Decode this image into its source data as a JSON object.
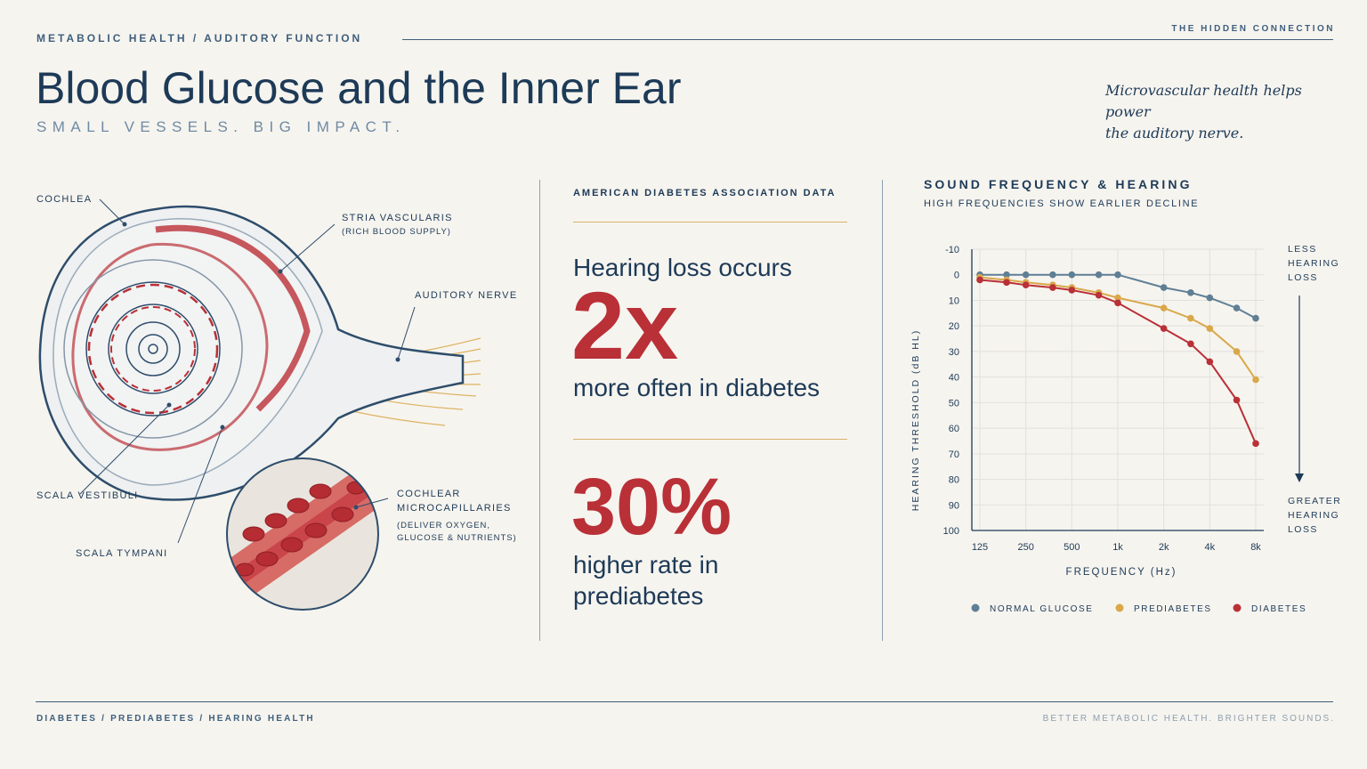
{
  "header": {
    "breadcrumb": "METABOLIC HEALTH  /  AUDITORY FUNCTION",
    "kicker": "THE HIDDEN CONNECTION",
    "title": "Blood Glucose and the Inner Ear",
    "subtitle": "SMALL VESSELS. BIG IMPACT.",
    "quote_line1": "Microvascular health helps power",
    "quote_line2": "the auditory nerve."
  },
  "illustration": {
    "labels": {
      "cochlea": "COCHLEA",
      "stria": "STRIA VASCULARIS",
      "stria_sub": "(RICH BLOOD SUPPLY)",
      "nerve": "AUDITORY NERVE",
      "vestibuli": "SCALA VESTIBULI",
      "tympani": "SCALA TYMPANI",
      "capillaries_1": "COCHLEAR",
      "capillaries_2": "MICROCAPILLARIES",
      "capillaries_sub_1": "(DELIVER OXYGEN,",
      "capillaries_sub_2": "GLUCOSE & NUTRIENTS)"
    },
    "colors": {
      "vessel": "#b93037",
      "nerve": "#d9a84a",
      "outline": "#2e4d6b"
    }
  },
  "stats": {
    "source": "AMERICAN DIABETES ASSOCIATION DATA",
    "stat1_lead": "Hearing loss occurs",
    "stat1_value": "2x",
    "stat1_tail": "more often in diabetes",
    "stat2_value": "30%",
    "stat2_tail_1": "higher rate in",
    "stat2_tail_2": "prediabetes"
  },
  "chart_data": {
    "type": "line",
    "title": "SOUND FREQUENCY & HEARING",
    "subtitle": "HIGH FREQUENCIES SHOW EARLIER DECLINE",
    "xlabel": "FREQUENCY (Hz)",
    "ylabel": "HEARING THRESHOLD (dB HL)",
    "categories": [
      "125",
      "250",
      "500",
      "1k",
      "2k",
      "4k",
      "8k"
    ],
    "x": [
      125,
      187,
      250,
      375,
      500,
      750,
      1000,
      2000,
      3000,
      4000,
      6000,
      8000
    ],
    "y_ticks": [
      -10,
      0,
      10,
      20,
      30,
      40,
      50,
      60,
      70,
      80,
      90,
      100
    ],
    "ylim": [
      -10,
      100
    ],
    "y_inverted": true,
    "x_scale": "log",
    "grid": true,
    "legend": "bottom",
    "top_note": "LESS HEARING LOSS",
    "bottom_note": "GREATER HEARING LOSS",
    "series": [
      {
        "name": "NORMAL GLUCOSE",
        "color": "#5f7f95",
        "points": [
          [
            125,
            0
          ],
          [
            187,
            0
          ],
          [
            250,
            0
          ],
          [
            375,
            0
          ],
          [
            500,
            0
          ],
          [
            750,
            0
          ],
          [
            1000,
            0
          ],
          [
            2000,
            5
          ],
          [
            3000,
            7
          ],
          [
            4000,
            9
          ],
          [
            6000,
            13
          ],
          [
            8000,
            17
          ]
        ]
      },
      {
        "name": "PREDIABETES",
        "color": "#d9a84a",
        "points": [
          [
            125,
            1
          ],
          [
            187,
            2
          ],
          [
            250,
            3
          ],
          [
            375,
            4
          ],
          [
            500,
            5
          ],
          [
            750,
            7
          ],
          [
            1000,
            9
          ],
          [
            2000,
            13
          ],
          [
            3000,
            17
          ],
          [
            4000,
            21
          ],
          [
            6000,
            30
          ],
          [
            8000,
            41
          ]
        ]
      },
      {
        "name": "DIABETES",
        "color": "#b93037",
        "points": [
          [
            125,
            2
          ],
          [
            187,
            3
          ],
          [
            250,
            4
          ],
          [
            375,
            5
          ],
          [
            500,
            6
          ],
          [
            750,
            8
          ],
          [
            1000,
            11
          ],
          [
            2000,
            21
          ],
          [
            3000,
            27
          ],
          [
            4000,
            34
          ],
          [
            6000,
            49
          ],
          [
            8000,
            66
          ]
        ]
      }
    ]
  },
  "footer": {
    "left": "DIABETES  /  PREDIABETES  /  HEARING HEALTH",
    "right": "BETTER METABOLIC HEALTH. BRIGHTER SOUNDS."
  }
}
